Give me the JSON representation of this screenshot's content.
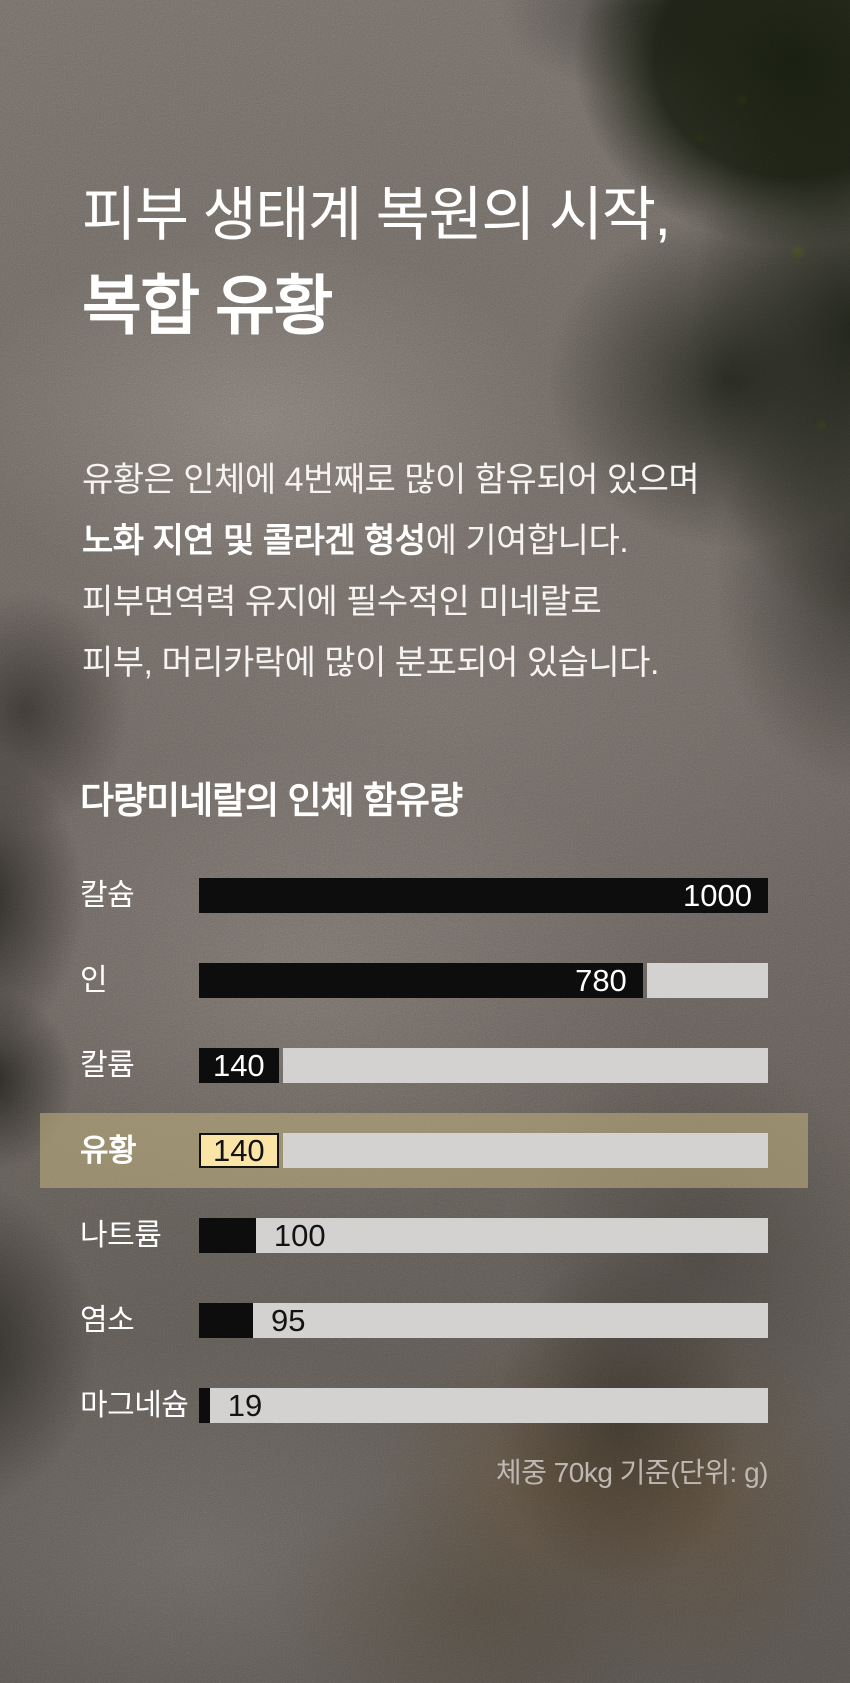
{
  "header": {
    "title_line1": "피부 생태계 복원의 시작,",
    "title_line2": "복합 유황"
  },
  "body": {
    "line1": "유황은 인체에 4번째로 많이 함유되어 있으며",
    "line2_bold": "노화 지연 및 콜라겐 형성",
    "line2_rest": "에 기여합니다.",
    "line3": "피부면역력 유지에 필수적인 미네랄로",
    "line4": "피부, 머리카락에 많이 분포되어 있습니다."
  },
  "chart": {
    "title": "다량미네랄의 인체 함유량",
    "footnote": "체중 70kg 기준(단위: g)",
    "max": 1000,
    "rows": [
      {
        "label": "칼슘",
        "value": 1000,
        "display": "1000",
        "value_position": "fill-right",
        "gap": false,
        "highlight": false
      },
      {
        "label": "인",
        "value": 780,
        "display": "780",
        "value_position": "fill-right",
        "gap": true,
        "highlight": false
      },
      {
        "label": "칼륨",
        "value": 140,
        "display": "140",
        "value_position": "fill-center",
        "gap": true,
        "highlight": false
      },
      {
        "label": "유황",
        "value": 140,
        "display": "140",
        "value_position": "box",
        "gap": true,
        "highlight": true
      },
      {
        "label": "나트륨",
        "value": 100,
        "display": "100",
        "value_position": "remainder",
        "gap": false,
        "highlight": false
      },
      {
        "label": "염소",
        "value": 95,
        "display": "95",
        "value_position": "remainder",
        "gap": false,
        "highlight": false
      },
      {
        "label": "마그네슘",
        "value": 19,
        "display": "19",
        "value_position": "remainder",
        "gap": false,
        "highlight": false
      }
    ],
    "colors": {
      "bar_fill": "#0d0d0d",
      "bar_remainder": "#d3d2d0",
      "value_on_fill": "#ffffff",
      "value_on_remainder": "#131313",
      "highlight_band": "rgba(187,172,125,0.60)",
      "highlight_box_bg": "#fbe5a6",
      "highlight_box_border": "#131313"
    }
  },
  "chart_data": {
    "type": "bar",
    "orientation": "horizontal",
    "title": "다량미네랄의 인체 함유량",
    "categories": [
      "칼슘",
      "인",
      "칼륨",
      "유황",
      "나트륨",
      "염소",
      "마그네슘"
    ],
    "values": [
      1000,
      780,
      140,
      140,
      100,
      95,
      19
    ],
    "highlighted_category": "유황",
    "xlim": [
      0,
      1000
    ],
    "unit": "g",
    "note": "체중 70kg 기준(단위: g)",
    "legend": "none",
    "grid": false
  }
}
